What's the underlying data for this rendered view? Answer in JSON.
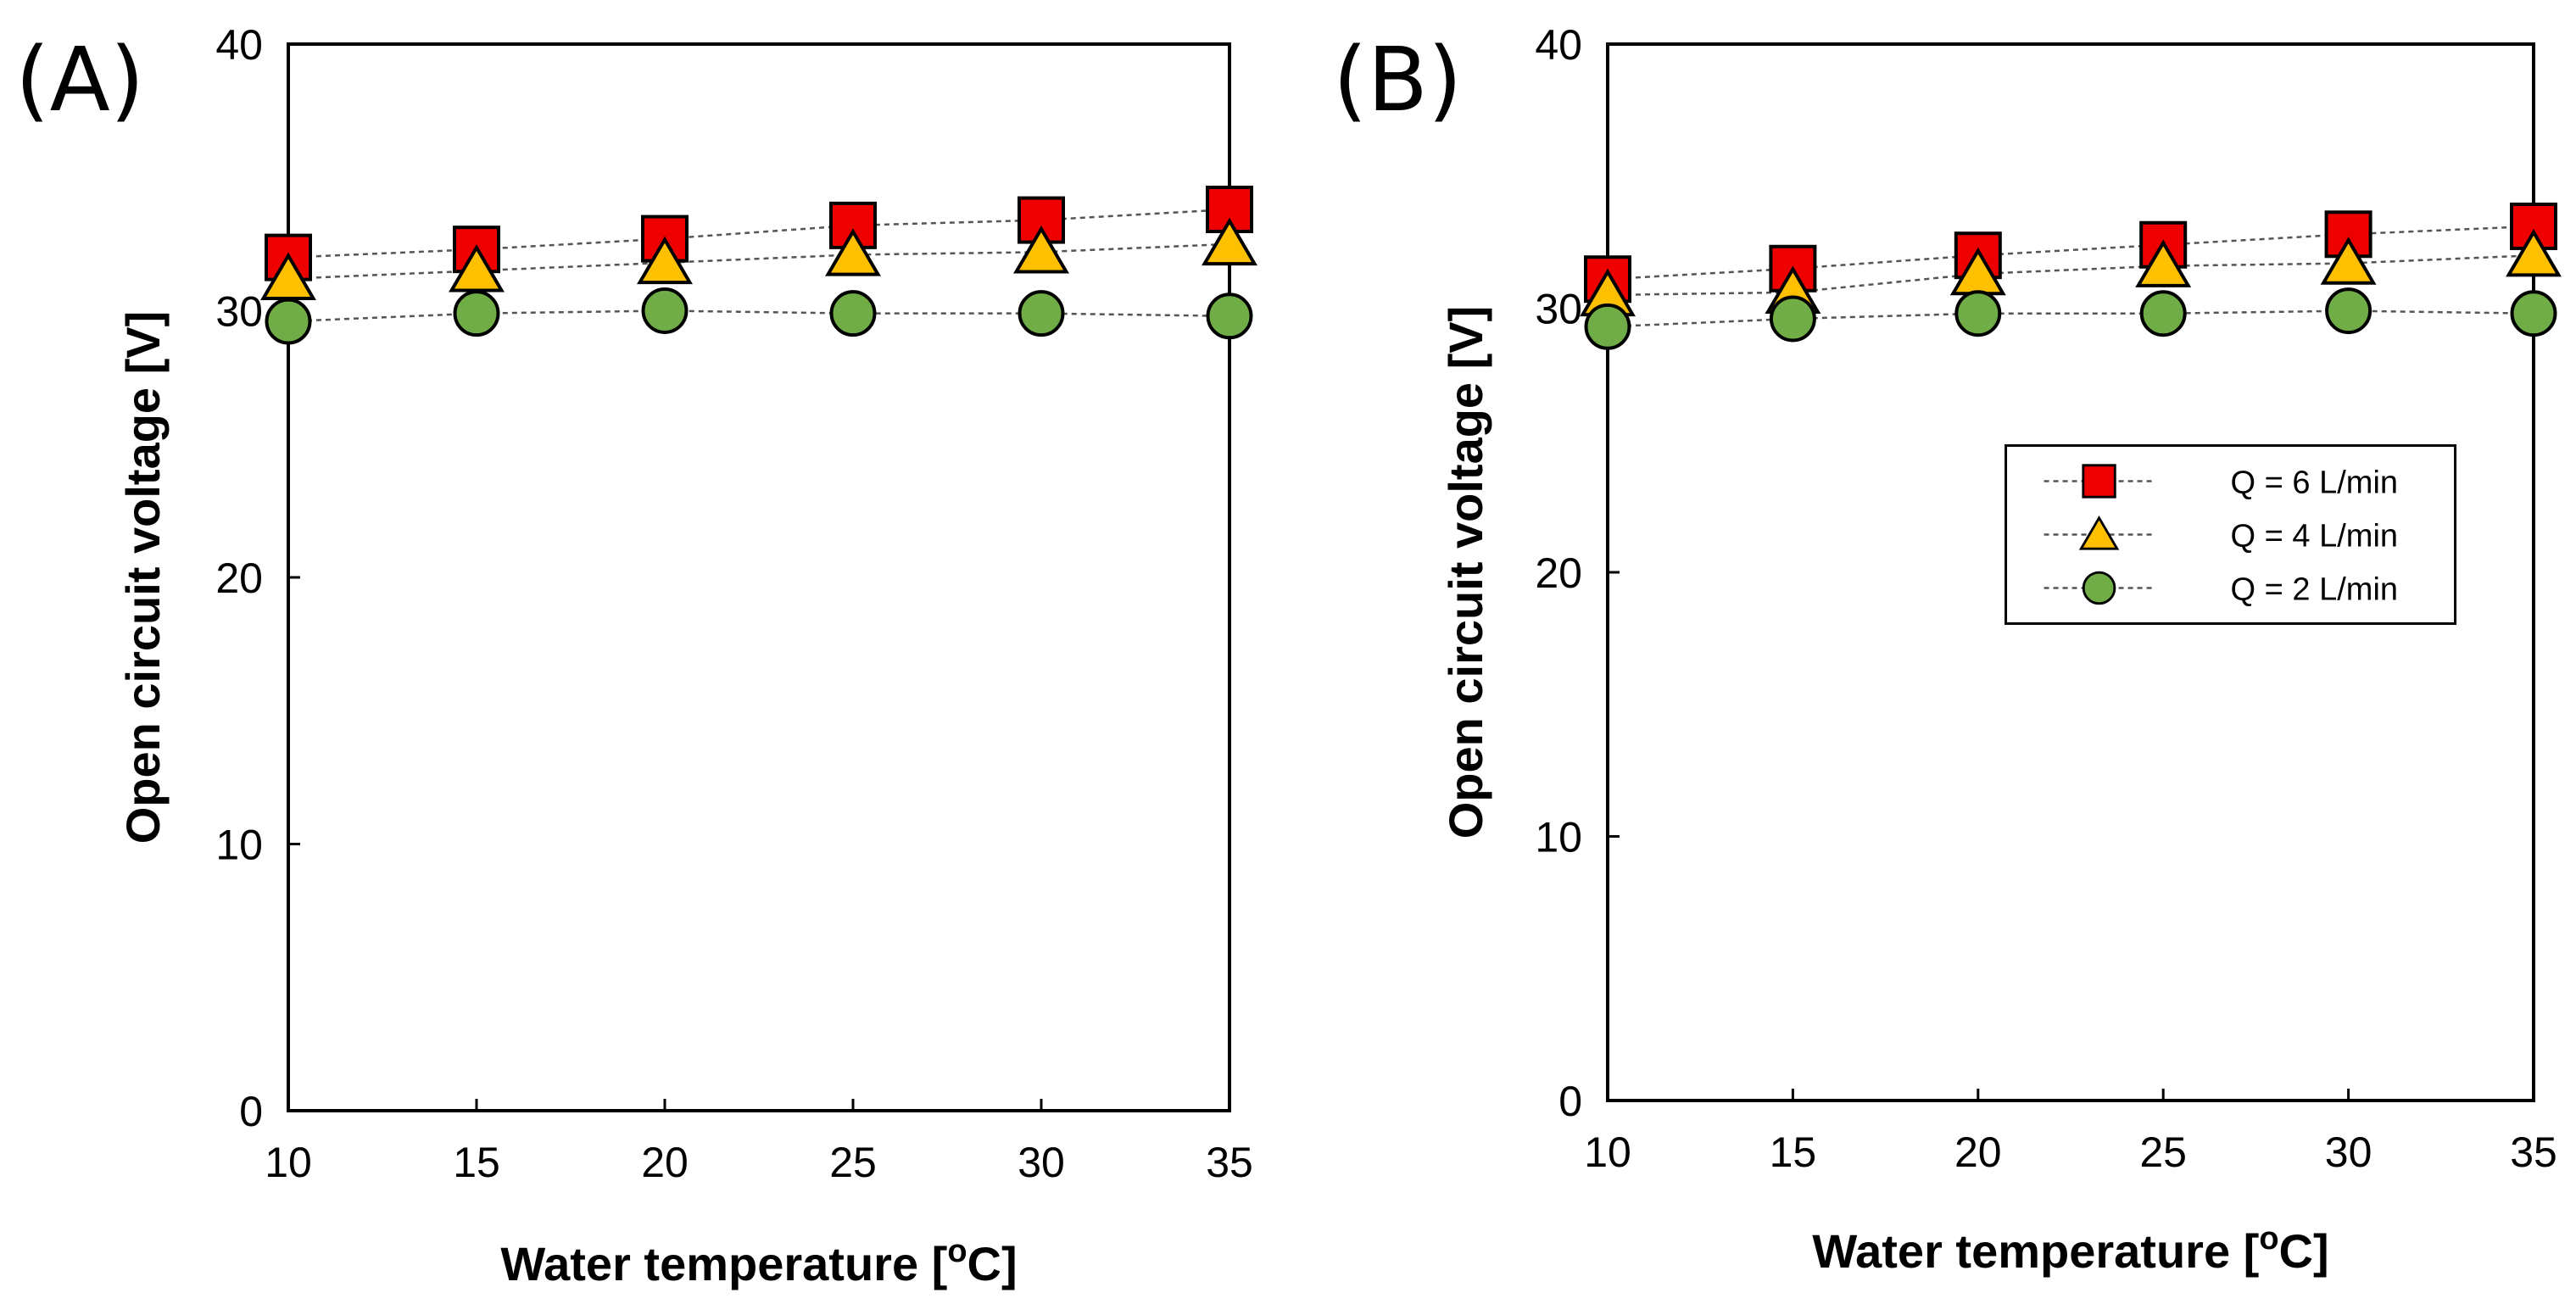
{
  "chart_data": [
    {
      "type": "line",
      "panel_label": "(A)",
      "xlabel": "Water temperature [",
      "xlabel_unit": "o",
      "xlabel_end": "C]",
      "ylabel": "Open circuit voltage [V]",
      "x": [
        10,
        15,
        20,
        25,
        30,
        35
      ],
      "x_ticks": [
        "10",
        "15",
        "20",
        "25",
        "30",
        "35"
      ],
      "y_ticks": [
        "0",
        "10",
        "20",
        "30",
        "40"
      ],
      "xlim": [
        10,
        35
      ],
      "ylim": [
        0,
        40
      ],
      "series": [
        {
          "name": "Q = 6 L/min",
          "marker": "square",
          "values": [
            32.0,
            32.3,
            32.7,
            33.2,
            33.4,
            33.8
          ]
        },
        {
          "name": "Q = 4 L/min",
          "marker": "triangle",
          "values": [
            31.2,
            31.5,
            31.8,
            32.1,
            32.2,
            32.5
          ]
        },
        {
          "name": "Q = 2 L/min",
          "marker": "circle",
          "values": [
            29.6,
            29.9,
            30.0,
            29.9,
            29.9,
            29.8
          ]
        }
      ],
      "legend": false
    },
    {
      "type": "line",
      "panel_label": "(B)",
      "xlabel": "Water temperature [",
      "xlabel_unit": "o",
      "xlabel_end": "C]",
      "ylabel": "Open circuit voltage [V]",
      "x": [
        10,
        15,
        20,
        25,
        30,
        35
      ],
      "x_ticks": [
        "10",
        "15",
        "20",
        "25",
        "30",
        "35"
      ],
      "y_ticks": [
        "0",
        "10",
        "20",
        "30",
        "40"
      ],
      "xlim": [
        10,
        35
      ],
      "ylim": [
        0,
        40
      ],
      "series": [
        {
          "name": "Q = 6 L/min",
          "marker": "square",
          "values": [
            31.1,
            31.5,
            32.0,
            32.4,
            32.8,
            33.1
          ]
        },
        {
          "name": "Q = 4 L/min",
          "marker": "triangle",
          "values": [
            30.5,
            30.6,
            31.3,
            31.6,
            31.7,
            32.0
          ]
        },
        {
          "name": "Q = 2 L/min",
          "marker": "circle",
          "values": [
            29.3,
            29.6,
            29.8,
            29.8,
            29.9,
            29.8
          ]
        }
      ],
      "legend": true,
      "legend_position": "middle-right"
    }
  ],
  "colors": {
    "square": "#ee0000",
    "triangle": "#ffc000",
    "circle": "#70ad47",
    "line": "#555555"
  }
}
